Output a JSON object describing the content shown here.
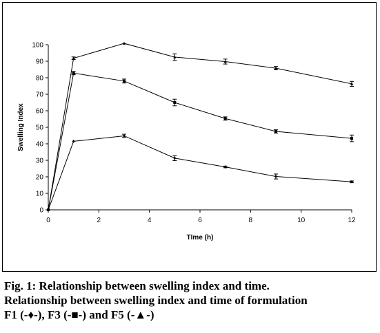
{
  "chart_data": {
    "type": "line",
    "xlabel": "TIme (h)",
    "ylabel": "Swelling Index",
    "xlim": [
      0,
      12
    ],
    "ylim": [
      0,
      100
    ],
    "x_ticks": [
      "0",
      "2",
      "4",
      "6",
      "8",
      "10",
      "12"
    ],
    "y_ticks": [
      "0",
      "10",
      "20",
      "30",
      "40",
      "50",
      "60",
      "70",
      "80",
      "90",
      "100"
    ],
    "grid": false,
    "series": [
      {
        "x": [
          0,
          1,
          3,
          5,
          7,
          9,
          12
        ],
        "values": [
          0,
          41.5,
          44.8,
          31.3,
          26.0,
          20.2,
          17.0
        ],
        "errors": [
          0,
          0,
          1.0,
          1.5,
          0.5,
          1.5,
          0.5
        ],
        "marker": "diamond"
      },
      {
        "x": [
          0,
          1,
          3,
          5,
          7,
          9,
          12
        ],
        "values": [
          0,
          82.8,
          78.0,
          65.0,
          55.3,
          47.5,
          43.3
        ],
        "errors": [
          0,
          1.0,
          1.2,
          2.0,
          1.0,
          1.0,
          2.0
        ],
        "marker": "square"
      },
      {
        "x": [
          0,
          1,
          3,
          5,
          7,
          9,
          12
        ],
        "values": [
          0,
          91.8,
          100.8,
          92.5,
          89.8,
          85.8,
          76.3
        ],
        "errors": [
          0,
          0.8,
          0,
          2.0,
          1.5,
          1.0,
          1.5
        ],
        "marker": "triangle"
      }
    ]
  },
  "caption": {
    "line1": "Fig. 1: Relationship between swelling index and time.",
    "line2": "Relationship between swelling index and time of formulation",
    "line3": "F1 (-♦-), F3 (-■-) and F5 (-▲-)"
  }
}
